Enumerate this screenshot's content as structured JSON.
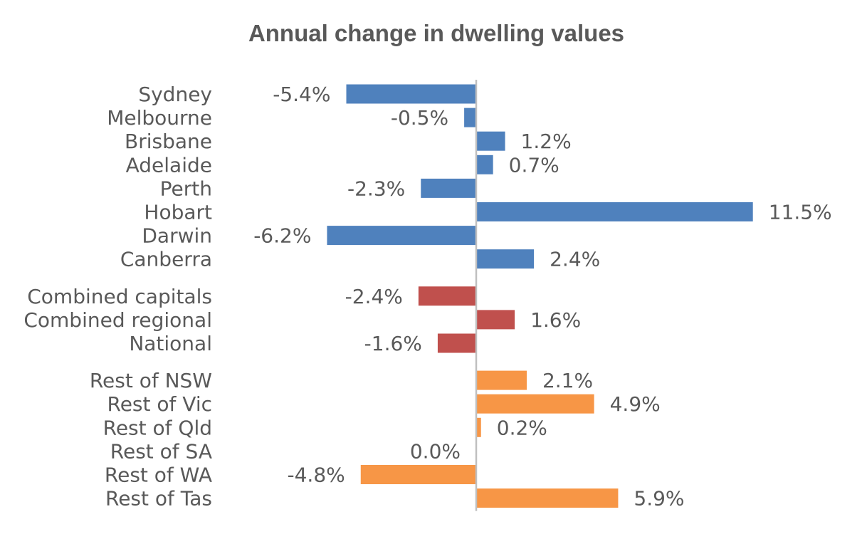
{
  "chart_data": {
    "type": "bar",
    "orientation": "horizontal",
    "title": "Annual change in dwelling values",
    "xlabel": "",
    "ylabel": "",
    "grid": false,
    "groups": [
      {
        "color": "#4f81bd",
        "categories": [
          "Sydney",
          "Melbourne",
          "Brisbane",
          "Adelaide",
          "Perth",
          "Hobart",
          "Darwin",
          "Canberra"
        ],
        "values": [
          -5.4,
          -0.5,
          1.2,
          0.7,
          -2.3,
          11.5,
          -6.2,
          2.4
        ],
        "labels": [
          "-5.4%",
          "-0.5%",
          "1.2%",
          "0.7%",
          "-2.3%",
          "11.5%",
          "-6.2%",
          "2.4%"
        ]
      },
      {
        "color": "#c0504d",
        "categories": [
          "Combined capitals",
          "Combined regional",
          "National"
        ],
        "values": [
          -2.4,
          1.6,
          -1.6
        ],
        "labels": [
          "-2.4%",
          "1.6%",
          "-1.6%"
        ]
      },
      {
        "color": "#f79646",
        "categories": [
          "Rest of NSW",
          "Rest of Vic",
          "Rest of Qld",
          "Rest of SA",
          "Rest of WA",
          "Rest of Tas"
        ],
        "values": [
          2.1,
          4.9,
          0.2,
          0.0,
          -4.8,
          5.9
        ],
        "labels": [
          "2.1%",
          "4.9%",
          "0.2%",
          "0.0%",
          "-4.8%",
          "5.9%"
        ]
      }
    ],
    "axis_color": "#bfbfbf"
  }
}
